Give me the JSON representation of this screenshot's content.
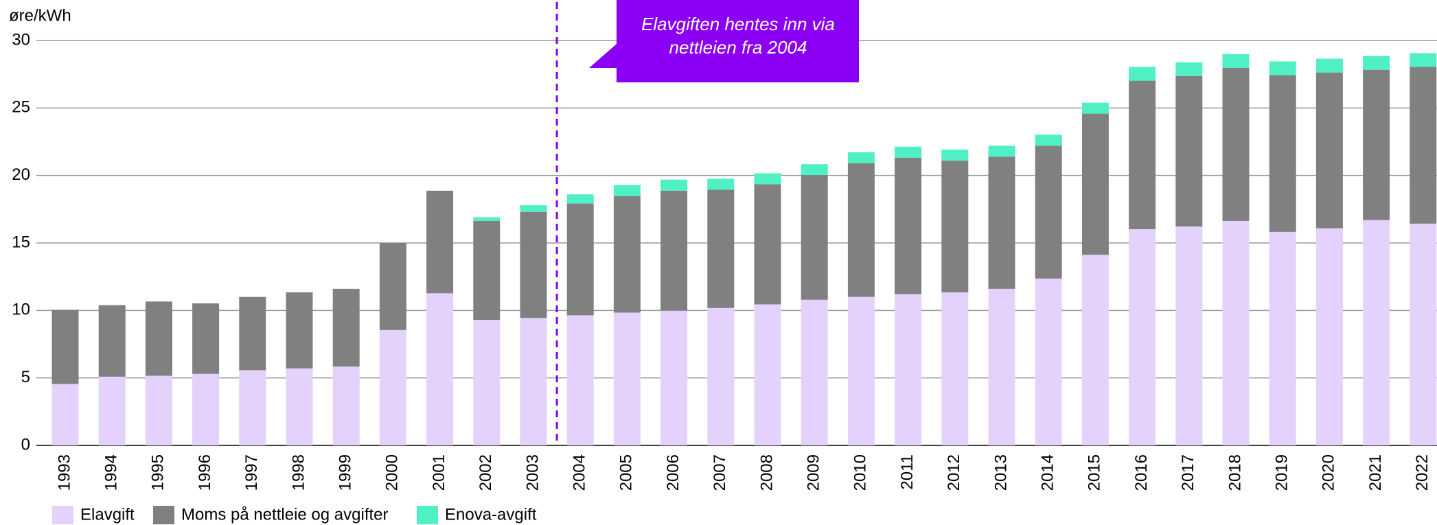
{
  "chart_data": {
    "type": "bar",
    "stacked": true,
    "y_label": "øre/kWh",
    "categories": [
      "1993",
      "1994",
      "1995",
      "1996",
      "1997",
      "1998",
      "1999",
      "2000",
      "2001",
      "2002",
      "2003",
      "2004",
      "2005",
      "2006",
      "2007",
      "2008",
      "2009",
      "2010",
      "2011",
      "2012",
      "2013",
      "2014",
      "2015",
      "2016",
      "2017",
      "2018",
      "2019",
      "2020",
      "2021",
      "2022"
    ],
    "series": [
      {
        "name": "Elavgift",
        "color": "#e4d2fc",
        "values": [
          4.55,
          5.09,
          5.16,
          5.3,
          5.57,
          5.7,
          5.84,
          8.55,
          11.27,
          9.3,
          9.44,
          9.64,
          9.84,
          9.98,
          10.18,
          10.45,
          10.79,
          11.0,
          11.2,
          11.34,
          11.6,
          12.36,
          14.12,
          16.02,
          16.22,
          16.63,
          15.82,
          16.09,
          16.7,
          16.43
        ]
      },
      {
        "name": "Moms på nettleie og avgifter",
        "color": "#808080",
        "values": [
          5.5,
          5.3,
          5.5,
          5.22,
          5.43,
          5.64,
          5.76,
          6.45,
          7.6,
          7.33,
          7.86,
          8.28,
          8.63,
          8.89,
          8.76,
          8.9,
          9.24,
          9.91,
          10.12,
          9.77,
          9.78,
          9.84,
          10.46,
          11.0,
          11.14,
          11.34,
          11.61,
          11.54,
          11.13,
          11.61
        ]
      },
      {
        "name": "Enova-avgift",
        "color": "#4ef0c4",
        "values": [
          null,
          null,
          null,
          null,
          null,
          null,
          null,
          null,
          null,
          0.27,
          0.49,
          0.68,
          0.81,
          0.82,
          0.82,
          0.81,
          0.81,
          0.81,
          0.81,
          0.81,
          0.82,
          0.82,
          0.81,
          1.02,
          1.02,
          1.02,
          1.02,
          1.02,
          1.02,
          1.02
        ]
      }
    ],
    "ylim": [
      0,
      30
    ],
    "yticks": [
      0,
      5,
      10,
      15,
      20,
      25,
      30
    ],
    "grid": true,
    "annotation": [
      "Elavgiften hentes inn via",
      "nettleien fra 2004"
    ],
    "annotation_color": "#8b00f5",
    "marker_category": "2004"
  }
}
